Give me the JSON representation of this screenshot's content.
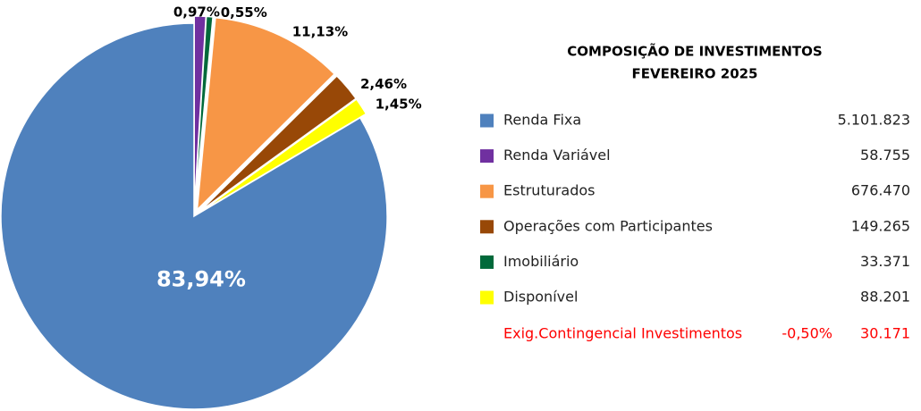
{
  "chart_data": {
    "type": "pie",
    "categories": [
      "Renda Variável",
      "Imobiliário",
      "Estruturados",
      "Operações com Participantes",
      "Disponível",
      "Renda Fixa"
    ],
    "values": [
      0.97,
      0.55,
      11.13,
      2.46,
      1.45,
      83.94
    ],
    "value_labels": [
      "0,97%",
      "0,55%",
      "11,13%",
      "2,46%",
      "1,45%",
      "83,94%"
    ],
    "colors": [
      "#7030a0",
      "#00693a",
      "#f79646",
      "#984807",
      "#ffff00",
      "#4f81bd"
    ]
  },
  "legend": {
    "title": "COMPOSIÇÃO DE INVESTIMENTOS",
    "subtitle": "FEVEREIRO 2025",
    "rows": [
      {
        "name": "Renda Fixa",
        "color": "#4f81bd",
        "amount": "5.101.823"
      },
      {
        "name": "Renda Variável",
        "color": "#7030a0",
        "amount": "58.755"
      },
      {
        "name": "Estruturados",
        "color": "#f79646",
        "amount": "676.470"
      },
      {
        "name": "Operações com Participantes",
        "color": "#984807",
        "amount": "149.265"
      },
      {
        "name": "Imobiliário",
        "color": "#00693a",
        "amount": "33.371"
      },
      {
        "name": "Disponível",
        "color": "#ffff00",
        "amount": "88.201"
      }
    ],
    "note": {
      "label": "Exig.Contingencial Investimentos",
      "percent": "-0,50%",
      "amount": "30.171"
    }
  }
}
